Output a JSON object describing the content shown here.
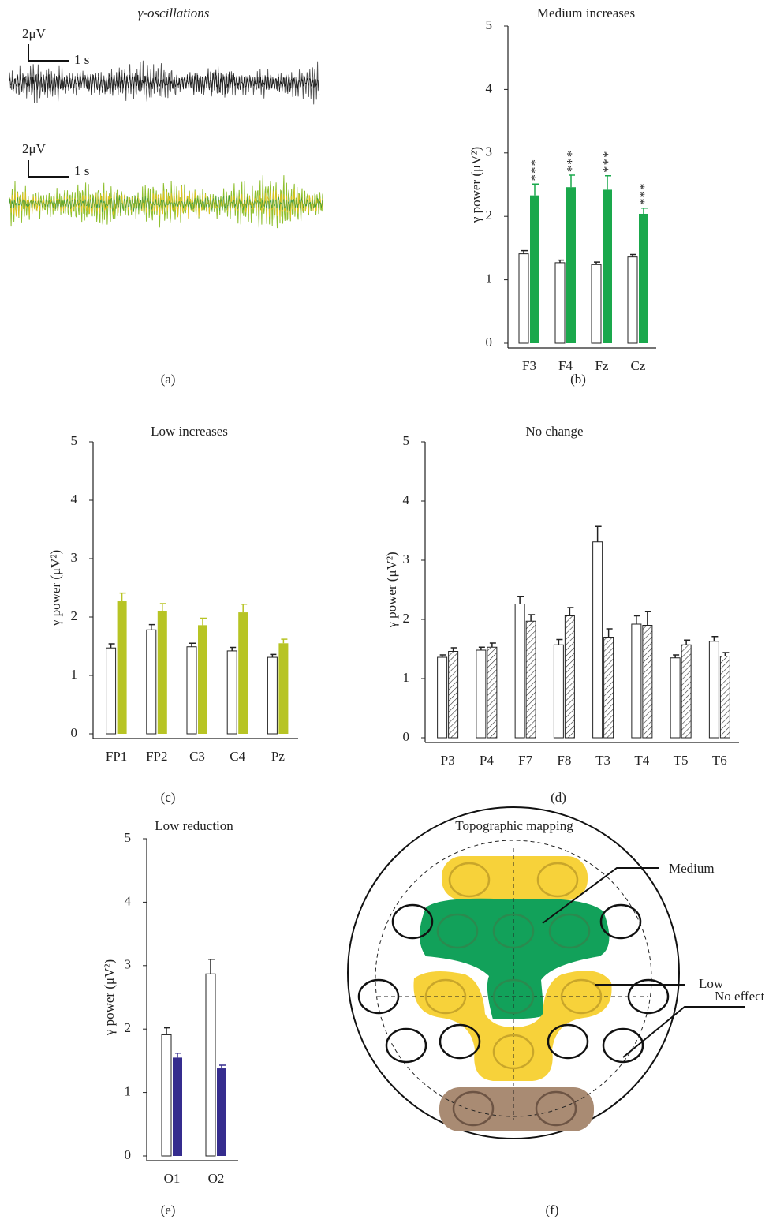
{
  "traces": {
    "title": "γ-oscillations",
    "caption": "(a)",
    "scale_bars": [
      {
        "amplitude": "2μV",
        "time": "1 s"
      },
      {
        "amplitude": "2μV",
        "time": "1 s"
      }
    ]
  },
  "chart_data": [
    {
      "type": "bar",
      "title": "Medium increases",
      "caption": "(b)",
      "y_label": "γ power (μV²)",
      "categories": [
        "F3",
        "F4",
        "Fz",
        "Cz"
      ],
      "series": [
        {
          "color": "#ffffff",
          "values": [
            1.41,
            1.27,
            1.24,
            1.36
          ],
          "errors": [
            0.05,
            0.04,
            0.04,
            0.04
          ]
        },
        {
          "color": "#1aa84c",
          "values": [
            2.33,
            2.46,
            2.42,
            2.04
          ],
          "errors": [
            0.18,
            0.19,
            0.22,
            0.09
          ]
        }
      ],
      "annotations": [
        "***",
        "***",
        "***",
        "***"
      ],
      "ylim": [
        0,
        5
      ],
      "yticks": [
        0,
        1,
        2,
        3,
        4,
        5
      ]
    },
    {
      "type": "bar",
      "title": "Low increases",
      "caption": "(c)",
      "y_label": "γ power (μV²)",
      "categories": [
        "FP1",
        "FP2",
        "C3",
        "C4",
        "Pz"
      ],
      "series": [
        {
          "color": "#ffffff",
          "values": [
            1.47,
            1.78,
            1.49,
            1.42,
            1.31
          ],
          "errors": [
            0.07,
            0.09,
            0.06,
            0.06,
            0.05
          ]
        },
        {
          "color": "#b7c424",
          "values": [
            2.27,
            2.1,
            1.86,
            2.08,
            1.55
          ],
          "errors": [
            0.14,
            0.13,
            0.12,
            0.14,
            0.07
          ]
        }
      ],
      "ylim": [
        0,
        5
      ],
      "yticks": [
        0,
        1,
        2,
        3,
        4,
        5
      ]
    },
    {
      "type": "bar",
      "title": "No change",
      "caption": "(d)",
      "y_label": "γ power (μV²)",
      "categories": [
        "P3",
        "P4",
        "F7",
        "F8",
        "T3",
        "T4",
        "T5",
        "T6"
      ],
      "series": [
        {
          "color": "#ffffff",
          "values": [
            1.36,
            1.48,
            2.26,
            1.57,
            3.31,
            1.92,
            1.35,
            1.63
          ],
          "errors": [
            0.04,
            0.05,
            0.13,
            0.09,
            0.26,
            0.14,
            0.05,
            0.08
          ]
        },
        {
          "color": "#333333",
          "pattern": "hatch",
          "values": [
            1.46,
            1.53,
            1.97,
            2.06,
            1.7,
            1.9,
            1.57,
            1.38
          ],
          "errors": [
            0.06,
            0.07,
            0.11,
            0.14,
            0.14,
            0.23,
            0.08,
            0.06
          ]
        }
      ],
      "ylim": [
        0,
        5
      ],
      "yticks": [
        0,
        1,
        2,
        3,
        4,
        5
      ]
    },
    {
      "type": "bar",
      "title": "Low reduction",
      "caption": "(e)",
      "y_label": "γ power (μV²)",
      "categories": [
        "O1",
        "O2"
      ],
      "series": [
        {
          "color": "#ffffff",
          "values": [
            1.91,
            2.87
          ],
          "errors": [
            0.11,
            0.23
          ]
        },
        {
          "color": "#352c8e",
          "values": [
            1.55,
            1.38
          ],
          "errors": [
            0.07,
            0.05
          ]
        }
      ],
      "ylim": [
        0,
        5
      ],
      "yticks": [
        0,
        1,
        2,
        3,
        4,
        5
      ]
    }
  ],
  "topography": {
    "title": "Topographic mapping",
    "caption": "(f)",
    "labels": [
      "Medium",
      "Low",
      "No effect"
    ]
  }
}
